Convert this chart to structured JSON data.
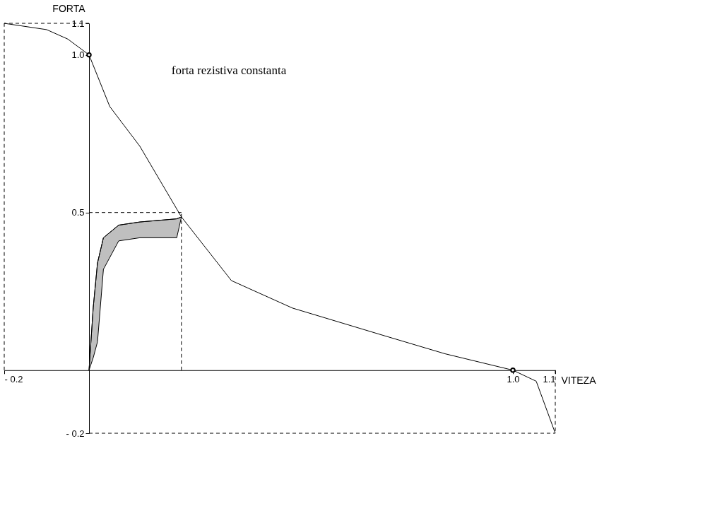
{
  "chart_data": {
    "type": "line",
    "xlabel": "VITEZA",
    "ylabel": "FORTA",
    "xlim": [
      -0.2,
      1.1
    ],
    "ylim": [
      -0.2,
      1.1
    ],
    "xticks": [
      {
        "value": -0.2,
        "label": "- 0.2"
      },
      {
        "value": 1.0,
        "label": "1.0"
      },
      1.1
    ],
    "yticks": [
      {
        "value": -0.2,
        "label": "- 0.2"
      },
      0.5,
      {
        "value": 1.0,
        "label": "1.0"
      },
      1.1
    ],
    "grid": false,
    "series": [
      {
        "color": "#000000",
        "x": [
          -0.2,
          -0.1,
          -0.05,
          0,
          0.049,
          0.12,
          0.218,
          0.336,
          0.48,
          0.695,
          0.84,
          1.0,
          1.055,
          1.1
        ],
        "values": [
          1.1,
          1.08,
          1.05,
          1.0,
          0.836,
          0.71,
          0.486,
          0.284,
          0.197,
          0.11,
          0.052,
          0,
          -0.035,
          -0.2
        ]
      },
      {
        "type": "line",
        "color": "#000000",
        "x": [
          0,
          0.01,
          0.02,
          0.034,
          0.07,
          0.12,
          0.207,
          0.218
        ],
        "values": [
          0,
          0.2,
          0.34,
          0.42,
          0.46,
          0.47,
          0.48,
          0.486
        ],
        "upper": [
          0,
          0.2,
          0.34,
          0.42,
          0.46,
          0.47,
          0.48,
          0.486
        ],
        "lower": [
          0,
          0.04,
          0.09,
          0.32,
          0.41,
          0.42,
          0.42,
          0.486
        ]
      },
      {
        "type": "scatter",
        "color": "#000000",
        "x": [
          0,
          1.0
        ],
        "values": [
          1.0,
          0
        ],
        "marker": "circle"
      }
    ],
    "ref_lines": [
      {
        "axis": "y",
        "value": 1.1,
        "line_style": "dashed"
      },
      {
        "axis": "y",
        "value": 0.5,
        "line_style": "dashed"
      },
      {
        "axis": "y",
        "value": -0.2,
        "line_style": "dashed"
      },
      {
        "axis": "x",
        "value": -0.2,
        "line_style": "dashed"
      },
      {
        "axis": "x",
        "value": 0.218,
        "line_style": "dashed"
      },
      {
        "axis": "x",
        "value": 1.1,
        "line_style": "dashed"
      }
    ],
    "annotations": [
      "forta rezistiva constanta"
    ]
  }
}
